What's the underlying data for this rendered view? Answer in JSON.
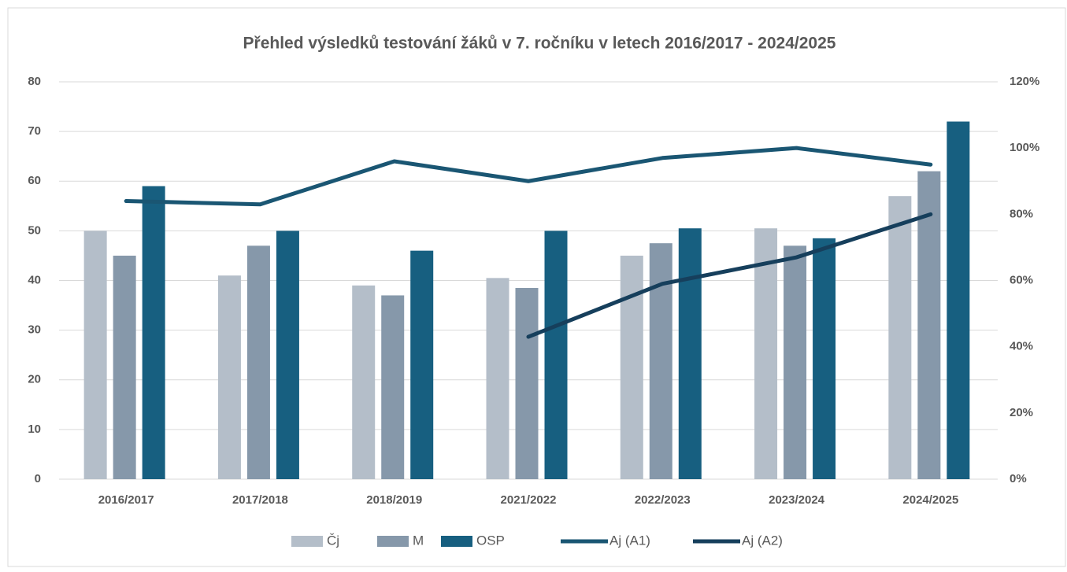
{
  "chart_data": {
    "type": "bar_line",
    "title": "Přehled výsledků testování žáků v 7. ročníku v letech 2016/2017 - 2024/2025",
    "categories": [
      "2016/2017",
      "2017/2018",
      "2018/2019",
      "2021/2022",
      "2022/2023",
      "2023/2024",
      "2024/2025"
    ],
    "series": [
      {
        "name": "Čj",
        "type": "bar",
        "color": "#b4bec9",
        "values": [
          50,
          41,
          39,
          40.5,
          45,
          50.5,
          57
        ]
      },
      {
        "name": "M",
        "type": "bar",
        "color": "#8698aa",
        "values": [
          45,
          47,
          37,
          38.5,
          47.5,
          47,
          62
        ]
      },
      {
        "name": "OSP",
        "type": "bar",
        "color": "#175f80",
        "values": [
          59,
          50,
          46,
          50,
          50.5,
          48.5,
          72
        ]
      },
      {
        "name": "Aj (A1)",
        "type": "line",
        "axis": "y2",
        "color": "#1a5673",
        "values": [
          84,
          83,
          96,
          90,
          97,
          100,
          95
        ]
      },
      {
        "name": "Aj (A2)",
        "type": "line",
        "axis": "y2",
        "color": "#163f5c",
        "values": [
          null,
          null,
          null,
          43,
          59,
          67,
          80
        ]
      }
    ],
    "ylim": [
      0,
      80
    ],
    "yticks": [
      0,
      10,
      20,
      30,
      40,
      50,
      60,
      70,
      80
    ],
    "y2lim": [
      0,
      120
    ],
    "y2ticks": [
      {
        "value": 0,
        "label": "0%"
      },
      {
        "value": 20,
        "label": "20%"
      },
      {
        "value": 40,
        "label": "40%"
      },
      {
        "value": 60,
        "label": "60%"
      },
      {
        "value": 80,
        "label": "80%"
      },
      {
        "value": 100,
        "label": "100%"
      },
      {
        "value": 120,
        "label": "120%"
      }
    ],
    "grid": true,
    "legend": "bottom"
  }
}
